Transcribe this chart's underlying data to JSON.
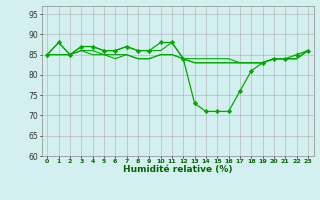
{
  "hours": [
    0,
    1,
    2,
    3,
    4,
    5,
    6,
    7,
    8,
    9,
    10,
    11,
    12,
    13,
    14,
    15,
    16,
    17,
    18,
    19,
    20,
    21,
    22,
    23
  ],
  "line_main": [
    85,
    88,
    85,
    87,
    87,
    86,
    86,
    87,
    86,
    86,
    88,
    88,
    84,
    73,
    71,
    71,
    71,
    76,
    81,
    83,
    84,
    84,
    85,
    86
  ],
  "line_top": [
    85,
    88,
    85,
    87,
    87,
    86,
    86,
    87,
    86,
    86,
    86,
    88,
    84,
    84,
    84,
    84,
    84,
    83,
    83,
    83,
    84,
    84,
    84,
    86
  ],
  "line_mid1": [
    85,
    85,
    85,
    86,
    86,
    85,
    85,
    85,
    84,
    84,
    85,
    85,
    84,
    83,
    83,
    83,
    83,
    83,
    83,
    83,
    84,
    84,
    84,
    86
  ],
  "line_mid2": [
    85,
    85,
    85,
    86,
    85,
    85,
    84,
    85,
    84,
    84,
    85,
    85,
    84,
    83,
    83,
    83,
    83,
    83,
    83,
    83,
    84,
    84,
    84,
    86
  ],
  "bg_color": "#d4efef",
  "grid_color": "#b0b0b0",
  "line_color": "#00aa00",
  "xlabel": "Humidité relative (%)",
  "ylim": [
    60,
    97
  ],
  "xlim": [
    -0.5,
    23.5
  ],
  "yticks": [
    60,
    65,
    70,
    75,
    80,
    85,
    90,
    95
  ],
  "xticks": [
    0,
    1,
    2,
    3,
    4,
    5,
    6,
    7,
    8,
    9,
    10,
    11,
    12,
    13,
    14,
    15,
    16,
    17,
    18,
    19,
    20,
    21,
    22,
    23
  ]
}
